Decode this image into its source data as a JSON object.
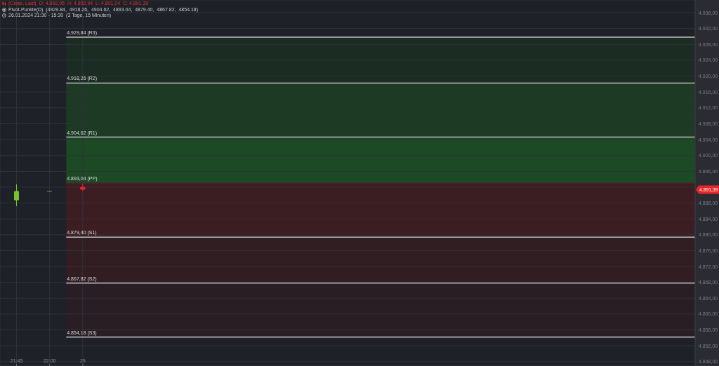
{
  "chart_data": {
    "type": "candlestick",
    "title": "(Close, Last)  O: 4.892,05  H: 4.892,94  L: 4.891,04  C: 4.891,39",
    "subtitle": "Pivot-Punkte(D)  (4929.84,  4918.26,  4904.62,  4893.04,  4879.40,  4867.82,  4854.18)",
    "annotations": [
      "26.01.2024 21:30 - 15:30  (3 Tage, 15 Minuten)",
      "4.891,39"
    ],
    "categories": [
      "21:45",
      "22:00",
      "29",
      null,
      null,
      null,
      null,
      null,
      null,
      null,
      null,
      null,
      null,
      null,
      null,
      null,
      null,
      null,
      null,
      null,
      null
    ],
    "ohlc": [
      [
        4888.7,
        4892.7,
        4887.2,
        4891.0
      ],
      [
        4891.0,
        4891.1,
        4890.9,
        4891.0
      ],
      [
        4892.05,
        4892.94,
        4891.04,
        4891.39
      ],
      null,
      null,
      null,
      null,
      null,
      null,
      null,
      null,
      null,
      null,
      null,
      null,
      null,
      null,
      null,
      null,
      null,
      null
    ],
    "colors": [
      "#78c12f",
      "#6f8a3c",
      "#e8262a",
      null,
      null,
      null,
      null,
      null,
      null,
      null,
      null,
      null,
      null,
      null,
      null,
      null,
      null,
      null,
      null,
      null,
      null
    ],
    "ylim": [
      4846.9,
      4939.2
    ],
    "yticks": [
      {
        "value": 4848,
        "label": "4.848,00"
      },
      {
        "value": 4852,
        "label": "4.852,00"
      },
      {
        "value": 4856,
        "label": "4.856,00"
      },
      {
        "value": 4860,
        "label": "4.860,00"
      },
      {
        "value": 4864,
        "label": "4.864,00"
      },
      {
        "value": 4868,
        "label": "4.868,00"
      },
      {
        "value": 4872,
        "label": "4.872,00"
      },
      {
        "value": 4876,
        "label": "4.876,00"
      },
      {
        "value": 4880,
        "label": "4.880,00"
      },
      {
        "value": 4884,
        "label": "4.884,00"
      },
      {
        "value": 4888,
        "label": "4.888,00"
      },
      {
        "value": 4892,
        "label": null
      },
      {
        "value": 4896,
        "label": "4.896,00"
      },
      {
        "value": 4900,
        "label": "4.900,00"
      },
      {
        "value": 4904,
        "label": "4.904,00"
      },
      {
        "value": 4908,
        "label": "4.908,00"
      },
      {
        "value": 4912,
        "label": "4.912,00"
      },
      {
        "value": 4916,
        "label": "4.916,00"
      },
      {
        "value": 4920,
        "label": "4.920,00"
      },
      {
        "value": 4924,
        "label": "4.924,00"
      },
      {
        "value": 4928,
        "label": "4.928,00"
      },
      {
        "value": 4932,
        "label": "4.932,00"
      },
      {
        "value": 4936,
        "label": "4.936,00"
      }
    ],
    "grid": true,
    "bands": [
      {
        "axis": "y",
        "from": 4918.26,
        "to": 4929.84,
        "color": "#1b2c23"
      },
      {
        "axis": "y",
        "from": 4904.62,
        "to": 4918.26,
        "color": "#1c3a24"
      },
      {
        "axis": "y",
        "from": 4893.04,
        "to": 4904.62,
        "color": "#1c4a25"
      },
      {
        "axis": "y",
        "from": 4879.4,
        "to": 4893.04,
        "color": "#3c1d22"
      },
      {
        "axis": "y",
        "from": 4867.82,
        "to": 4879.4,
        "color": "#311d22"
      },
      {
        "axis": "y",
        "from": 4854.18,
        "to": 4867.82,
        "color": "#291e23"
      }
    ],
    "ref_lines": [
      {
        "axis": "y",
        "value": 4929.84,
        "label": "4.929,84 (R3)",
        "color": "#bdbdbd"
      },
      {
        "axis": "y",
        "value": 4918.26,
        "label": "4.918,26 (R2)",
        "color": "#bdbdbd"
      },
      {
        "axis": "y",
        "value": 4904.62,
        "label": "4.904,62 (R1)",
        "color": "#bdbdbd"
      },
      {
        "axis": "y",
        "value": 4893.04,
        "label": "4.893,04 (PP)",
        "color": "#4a2a30"
      },
      {
        "axis": "y",
        "value": 4879.4,
        "label": "4.879,40 (S1)",
        "color": "#bdbdbd"
      },
      {
        "axis": "y",
        "value": 4867.82,
        "label": "4.867,82 (S2)",
        "color": "#bdbdbd"
      },
      {
        "axis": "y",
        "value": 4854.18,
        "label": "4.854,18 (S3)",
        "color": "#bdbdbd"
      }
    ]
  }
}
